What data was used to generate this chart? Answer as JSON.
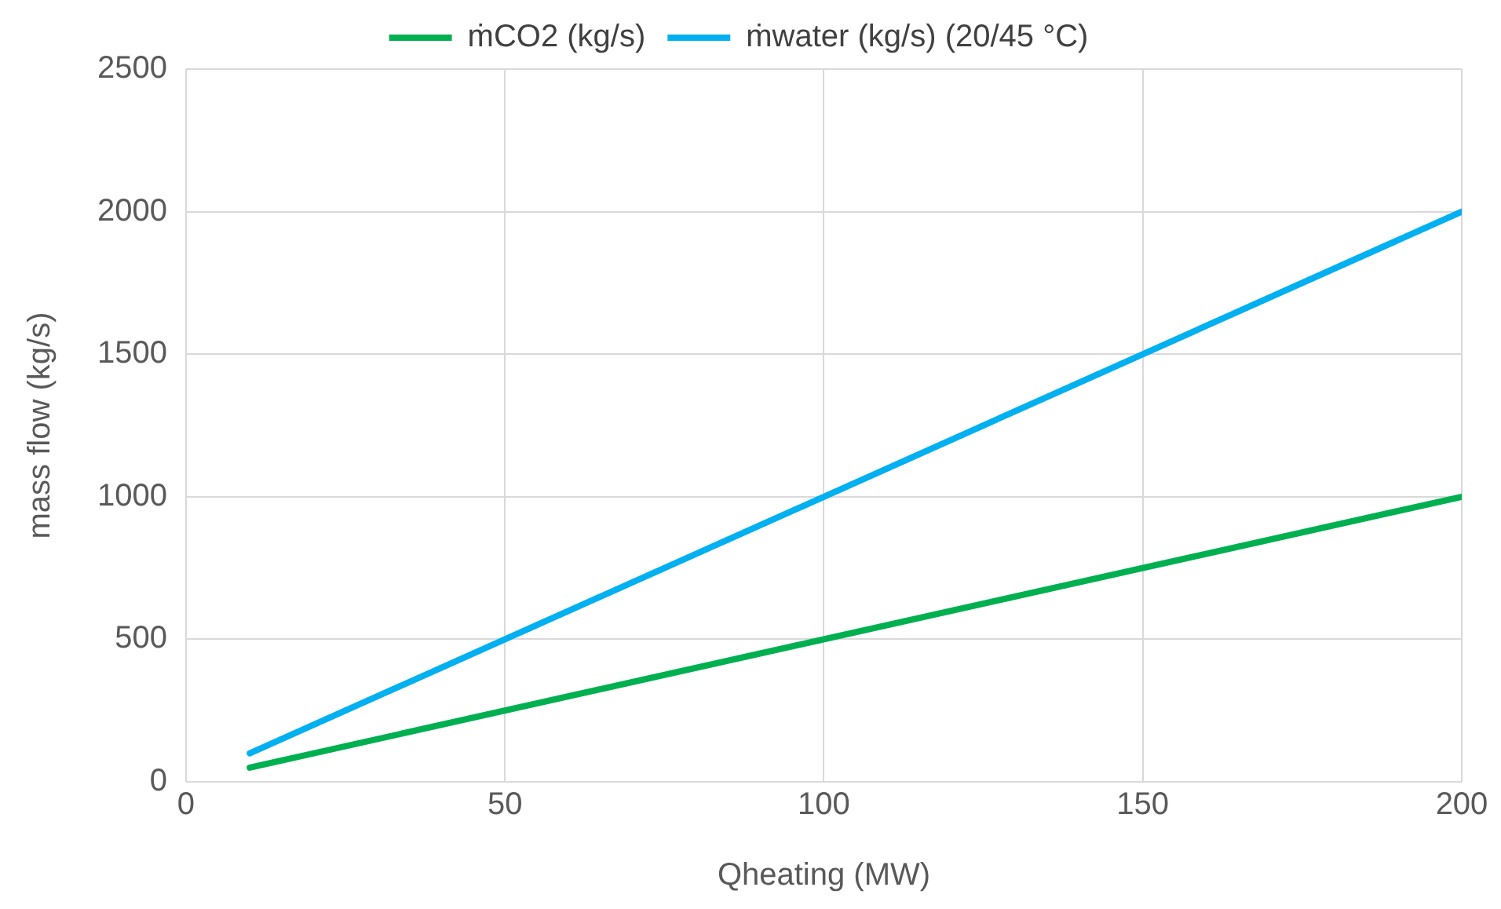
{
  "chart_data": {
    "type": "line",
    "xlabel": "Qheating (MW)",
    "ylabel": "mass flow (kg/s)",
    "x": [
      10,
      200
    ],
    "series": [
      {
        "name": "ṁCO2 (kg/s)",
        "color": "#00b050",
        "values": [
          50,
          1000
        ]
      },
      {
        "name": "ṁwater (kg/s) (20/45 °C)",
        "color": "#00b0f0",
        "values": [
          100,
          2000
        ]
      }
    ],
    "xlim": [
      0,
      200
    ],
    "xticks": [
      0,
      50,
      100,
      150,
      200
    ],
    "ylim": [
      0,
      2500
    ],
    "yticks": [
      0,
      500,
      1000,
      1500,
      2000,
      2500
    ],
    "grid": true,
    "legend": "top",
    "marker": "none",
    "line_style": "solid"
  }
}
